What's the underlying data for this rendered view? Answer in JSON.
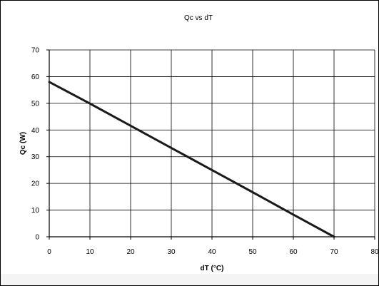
{
  "chart_data": {
    "type": "line",
    "title": "Qc vs dT",
    "xlabel": "dT (°C)",
    "ylabel": "Qc (W)",
    "xlim": [
      0,
      80
    ],
    "ylim": [
      0,
      70
    ],
    "x_ticks": [
      0,
      10,
      20,
      30,
      40,
      50,
      60,
      70,
      80
    ],
    "y_ticks": [
      0,
      10,
      20,
      30,
      40,
      50,
      60,
      70
    ],
    "grid": true,
    "legend": "none",
    "series": [
      {
        "x": [
          0,
          10,
          20,
          30,
          40,
          50,
          60,
          70
        ],
        "y": [
          58,
          49.9,
          41.6,
          33.3,
          25,
          16.7,
          8.3,
          0
        ],
        "color": "#1a1a1a"
      }
    ]
  }
}
